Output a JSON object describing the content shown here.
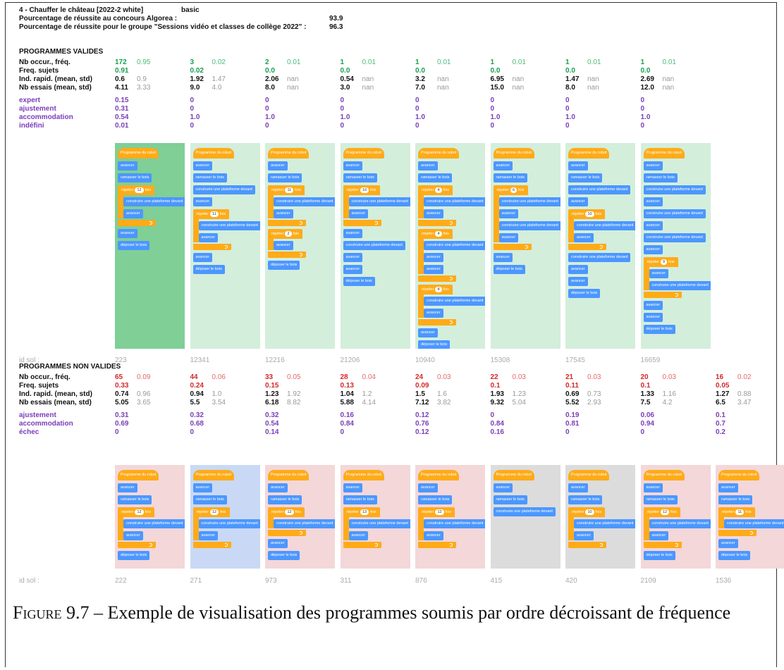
{
  "header": {
    "title": "4 - Chauffer le château [2022-2 white]",
    "type": "basic",
    "lines": [
      {
        "label": "Pourcentage de réussite au concours Algorea :",
        "value": 93.9
      },
      {
        "label": "Pourcentage de réussite pour le groupe \"Sessions vidéo et classes de collège 2022\" :",
        "value": 96.3
      }
    ]
  },
  "valid": {
    "title": "PROGRAMMES VALIDES",
    "id_label": "id sol :",
    "row_labels": [
      "Nb occur., fréq.",
      "Freq. sujets",
      "Ind. rapid. (mean, std)",
      "Nb essais (mean, std)",
      "expert",
      "ajustement",
      "accommodation",
      "indéfini"
    ],
    "columns": [
      {
        "background": "#7fcf96",
        "id": 223,
        "stats": [
          [
            172,
            0.95
          ],
          [
            0.91
          ],
          [
            0.6,
            0.9
          ],
          [
            4.11,
            3.33
          ],
          [
            0.15
          ],
          [
            0.31
          ],
          [
            0.54
          ],
          [
            0.01
          ]
        ],
        "program": [
          "Programme du robot",
          "avancer",
          "ramasser le bois",
          {
            "label": "répéter",
            "count": 12,
            "unit": "fois",
            "body": [
              "construire une plateforme devant",
              "avancer"
            ]
          },
          "avancer",
          "déposer le bois"
        ]
      },
      {
        "background": "#d3eedb",
        "id": 12341,
        "stats": [
          [
            3,
            0.02
          ],
          [
            0.02
          ],
          [
            1.92,
            1.47
          ],
          [
            "9.0",
            "4.0"
          ],
          [
            0
          ],
          [
            0
          ],
          [
            "1.0"
          ],
          [
            0
          ]
        ],
        "program": [
          "Programme du robot",
          "avancer",
          "ramasser le bois",
          "construire une plateforme devant",
          "avancer",
          {
            "label": "répéter",
            "count": 11,
            "unit": "fois",
            "body": [
              "construire une plateforme devant",
              "avancer"
            ]
          },
          "avancer",
          "déposer le bois"
        ]
      },
      {
        "background": "#d3eedb",
        "id": 12216,
        "stats": [
          [
            2,
            0.01
          ],
          [
            "0.0"
          ],
          [
            2.06,
            "nan"
          ],
          [
            "8.0",
            "nan"
          ],
          [
            0
          ],
          [
            0
          ],
          [
            "1.0"
          ],
          [
            0
          ]
        ],
        "program": [
          "Programme du robot",
          "avancer",
          "ramasser le bois",
          {
            "label": "répéter",
            "count": 11,
            "unit": "fois",
            "body": [
              "construire une plateforme devant",
              "avancer"
            ]
          },
          {
            "label": "répéter",
            "count": 2,
            "unit": "fois",
            "body": [
              "avancer"
            ]
          },
          "déposer le bois"
        ]
      },
      {
        "background": "#d3eedb",
        "id": 21206,
        "stats": [
          [
            1,
            0.01
          ],
          [
            "0.0"
          ],
          [
            0.54,
            "nan"
          ],
          [
            "3.0",
            "nan"
          ],
          [
            0
          ],
          [
            0
          ],
          [
            "1.0"
          ],
          [
            0
          ]
        ],
        "program": [
          "Programme du robot",
          "avancer",
          "ramasser le bois",
          {
            "label": "répéter",
            "count": 10,
            "unit": "fois",
            "body": [
              "construire une plateforme devant",
              "avancer"
            ]
          },
          "avancer",
          "construire une plateforme devant",
          "avancer",
          "avancer",
          "déposer le bois"
        ]
      },
      {
        "background": "#d3eedb",
        "id": 10940,
        "stats": [
          [
            1,
            0.01
          ],
          [
            "0.0"
          ],
          [
            3.2,
            "nan"
          ],
          [
            "7.0",
            "nan"
          ],
          [
            0
          ],
          [
            0
          ],
          [
            "1.0"
          ],
          [
            0
          ]
        ],
        "program": [
          "Programme du robot",
          "avancer",
          "ramasser le bois",
          {
            "label": "répéter",
            "count": 4,
            "unit": "fois",
            "body": [
              "construire une plateforme devant",
              "avancer"
            ]
          },
          {
            "label": "répéter",
            "count": 4,
            "unit": "fois",
            "body": [
              "construire une plateforme devant",
              "avancer",
              "avancer"
            ]
          },
          {
            "label": "répéter",
            "count": 4,
            "unit": "fois",
            "body": [
              "construire une plateforme devant",
              "avancer"
            ]
          },
          "avancer",
          "déposer le bois"
        ]
      },
      {
        "background": "#d3eedb",
        "id": 15308,
        "stats": [
          [
            1,
            0.01
          ],
          [
            "0.0"
          ],
          [
            6.95,
            "nan"
          ],
          [
            "15.0",
            "nan"
          ],
          [
            0
          ],
          [
            0
          ],
          [
            "1.0"
          ],
          [
            0
          ]
        ],
        "program": [
          "Programme du robot",
          "avancer",
          "ramasser le bois",
          {
            "label": "répéter",
            "count": 6,
            "unit": "fois",
            "body": [
              "construire une plateforme devant",
              "avancer",
              "construire une plateforme devant",
              "avancer"
            ]
          },
          "avancer",
          "déposer le bois"
        ]
      },
      {
        "background": "#d3eedb",
        "id": 17545,
        "stats": [
          [
            1,
            0.01
          ],
          [
            "0.0"
          ],
          [
            1.47,
            "nan"
          ],
          [
            "8.0",
            "nan"
          ],
          [
            0
          ],
          [
            0
          ],
          [
            "1.0"
          ],
          [
            0
          ]
        ],
        "program": [
          "Programme du robot",
          "avancer",
          "ramasser le bois",
          "construire une plateforme devant",
          "avancer",
          {
            "label": "répéter",
            "count": 10,
            "unit": "fois",
            "body": [
              "construire une plateforme devant",
              "avancer"
            ]
          },
          "construire une plateforme devant",
          "avancer",
          "avancer",
          "déposer le bois"
        ]
      },
      {
        "background": "#d3eedb",
        "id": 16659,
        "stats": [
          [
            1,
            0.01
          ],
          [
            "0.0"
          ],
          [
            2.69,
            "nan"
          ],
          [
            "12.0",
            "nan"
          ],
          [
            0
          ],
          [
            0
          ],
          [
            "1.0"
          ],
          [
            0
          ]
        ],
        "program": [
          "Programme du robot",
          "avancer",
          "ramasser le bois",
          "construire une plateforme devant",
          "avancer",
          "construire une plateforme devant",
          "avancer",
          "construire une plateforme devant",
          "avancer",
          {
            "label": "répéter",
            "count": 9,
            "unit": "fois",
            "body": [
              "avancer",
              "construire une plateforme devant"
            ]
          },
          "avancer",
          "avancer",
          "déposer le bois"
        ]
      }
    ]
  },
  "invalid": {
    "title": "PROGRAMMES NON VALIDES",
    "id_label": "id sol :",
    "row_labels": [
      "Nb occur., fréq.",
      "Freq. sujets",
      "Ind. rapid. (mean, std)",
      "Nb essais (mean, std)",
      "ajustement",
      "accommodation",
      "échec"
    ],
    "columns": [
      {
        "background": "#f3d7d9",
        "id": 222,
        "stats": [
          [
            65,
            0.09
          ],
          [
            0.33
          ],
          [
            0.74,
            0.96
          ],
          [
            5.05,
            3.65
          ],
          [
            0.31
          ],
          [
            0.69
          ],
          [
            0
          ]
        ],
        "program": [
          "Programme du robot",
          "avancer",
          "ramasser le bois",
          {
            "label": "répéter",
            "count": 12,
            "unit": "fois",
            "body": [
              "construire une plateforme devant",
              "avancer"
            ]
          },
          "déposer le bois"
        ]
      },
      {
        "background": "#c9d9f5",
        "id": 271,
        "stats": [
          [
            44,
            0.06
          ],
          [
            0.24
          ],
          [
            0.94,
            "1.0"
          ],
          [
            5.5,
            3.54
          ],
          [
            0.32
          ],
          [
            0.68
          ],
          [
            0
          ]
        ],
        "program": [
          "Programme du robot",
          "avancer",
          "ramasser le bois",
          {
            "label": "répéter",
            "count": 12,
            "unit": "fois",
            "body": [
              "construire une plateforme devant",
              "avancer"
            ]
          }
        ]
      },
      {
        "background": "#f3d7d9",
        "id": 973,
        "stats": [
          [
            33,
            0.05
          ],
          [
            0.15
          ],
          [
            1.23,
            1.92
          ],
          [
            6.18,
            8.82
          ],
          [
            0.32
          ],
          [
            0.54
          ],
          [
            0.14
          ]
        ],
        "program": [
          "Programme du robot",
          "avancer",
          "ramasser le bois",
          {
            "label": "répéter",
            "count": 12,
            "unit": "fois",
            "body": [
              "construire une plateforme devant"
            ]
          },
          "avancer",
          "déposer le bois"
        ]
      },
      {
        "background": "#f3d7d9",
        "id": 311,
        "stats": [
          [
            28,
            0.04
          ],
          [
            0.13
          ],
          [
            1.04,
            1.2
          ],
          [
            5.88,
            4.14
          ],
          [
            0.16
          ],
          [
            0.84
          ],
          [
            0
          ]
        ],
        "program": [
          "Programme du robot",
          "avancer",
          "ramasser le bois",
          {
            "label": "répéter",
            "count": 13,
            "unit": "fois",
            "body": [
              "construire une plateforme devant",
              "avancer"
            ]
          }
        ]
      },
      {
        "background": "#f3d7d9",
        "id": 876,
        "stats": [
          [
            24,
            0.03
          ],
          [
            0.09
          ],
          [
            1.5,
            1.6
          ],
          [
            7.12,
            3.82
          ],
          [
            0.12
          ],
          [
            0.76
          ],
          [
            0.12
          ]
        ],
        "program": [
          "Programme du robot",
          "avancer",
          "ramasser le bois",
          {
            "label": "répéter",
            "count": 12,
            "unit": "fois",
            "body": [
              "construire une plateforme devant",
              "avancer"
            ]
          }
        ]
      },
      {
        "background": "#dcdcdc",
        "id": 415,
        "stats": [
          [
            22,
            0.03
          ],
          [
            0.1
          ],
          [
            1.93,
            1.23
          ],
          [
            9.32,
            5.04
          ],
          [
            0
          ],
          [
            0.84
          ],
          [
            0.16
          ]
        ],
        "program": [
          "Programme du robot",
          "avancer",
          "ramasser le bois",
          "construire une plateforme devant"
        ]
      },
      {
        "background": "#dcdcdc",
        "id": 420,
        "stats": [
          [
            21,
            0.03
          ],
          [
            0.11
          ],
          [
            0.69,
            0.73
          ],
          [
            5.52,
            2.93
          ],
          [
            0.19
          ],
          [
            0.81
          ],
          [
            0
          ]
        ],
        "program": [
          "Programme du robot",
          "avancer",
          "ramasser le bois",
          {
            "label": "répéter",
            "count": 10,
            "unit": "fois",
            "body": [
              "construire une plateforme devant",
              "avancer"
            ]
          }
        ]
      },
      {
        "background": "#f3d7d9",
        "id": 2109,
        "stats": [
          [
            20,
            0.03
          ],
          [
            0.1
          ],
          [
            1.33,
            1.16
          ],
          [
            7.5,
            4.2
          ],
          [
            0.06
          ],
          [
            0.94
          ],
          [
            0
          ]
        ],
        "program": [
          "Programme du robot",
          "avancer",
          "ramasser le bois",
          {
            "label": "répéter",
            "count": 12,
            "unit": "fois",
            "body": [
              "construire une plateforme devant",
              "avancer"
            ]
          },
          "déposer le bois"
        ]
      },
      {
        "background": "#f3d7d9",
        "id": 1536,
        "stats": [
          [
            16,
            0.02
          ],
          [
            0.05
          ],
          [
            1.27,
            0.88
          ],
          [
            6.5,
            3.47
          ],
          [
            0.1
          ],
          [
            0.7
          ],
          [
            0.2
          ]
        ],
        "program": [
          "Programme du robot",
          "avancer",
          "ramasser le bois",
          {
            "label": "répéter",
            "count": 11,
            "unit": "fois",
            "body": [
              "construire une plateforme devant"
            ]
          },
          "avancer",
          "déposer le bois"
        ]
      }
    ]
  },
  "caption": {
    "label": "Figure 9.7",
    "text": "– Exemple de visualisation des programmes soumis par ordre décroissant de fréquence"
  }
}
